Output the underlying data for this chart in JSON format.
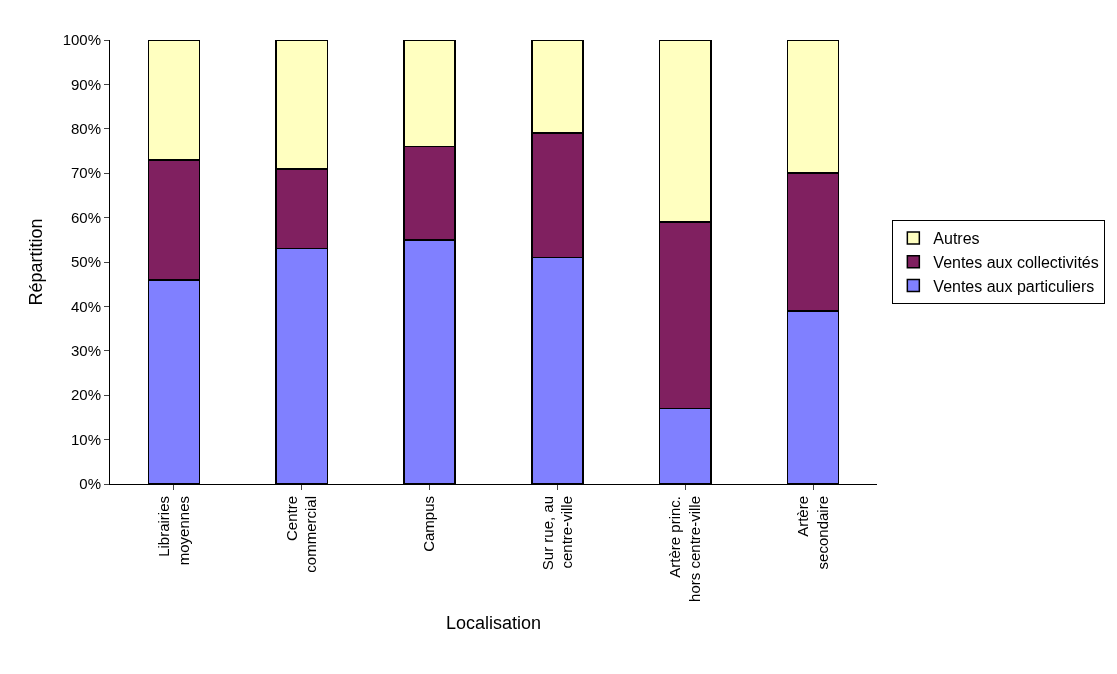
{
  "chart_data": {
    "type": "bar",
    "stacked": true,
    "xlabel": "Localisation",
    "ylabel": "Répartition",
    "categories": [
      "Librairies\nmoyennes",
      "Centre\ncommercial",
      "Campus",
      "Sur rue, au\ncentre-ville",
      "Artère princ.\nhors centre-ville",
      "Artère\nsecondaire"
    ],
    "series": [
      {
        "name": "Ventes aux particuliers",
        "color": "#8080ff",
        "values": [
          46,
          53,
          55,
          51,
          17,
          39
        ]
      },
      {
        "name": "Ventes aux collectivités",
        "color": "#802060",
        "values": [
          27,
          18,
          21,
          28,
          42,
          31
        ]
      },
      {
        "name": "Autres",
        "color": "#ffffc0",
        "values": [
          27,
          29,
          24,
          21,
          41,
          30
        ]
      }
    ],
    "ylim": [
      0,
      100
    ],
    "yticks": [
      {
        "value": 0,
        "label": "0%"
      },
      {
        "value": 10,
        "label": "10%"
      },
      {
        "value": 20,
        "label": "20%"
      },
      {
        "value": 30,
        "label": "30%"
      },
      {
        "value": 40,
        "label": "40%"
      },
      {
        "value": 50,
        "label": "50%"
      },
      {
        "value": 60,
        "label": "60%"
      },
      {
        "value": 70,
        "label": "70%"
      },
      {
        "value": 80,
        "label": "80%"
      },
      {
        "value": 90,
        "label": "90%"
      },
      {
        "value": 100,
        "label": "100%"
      }
    ],
    "grid": false,
    "legend": "right"
  }
}
